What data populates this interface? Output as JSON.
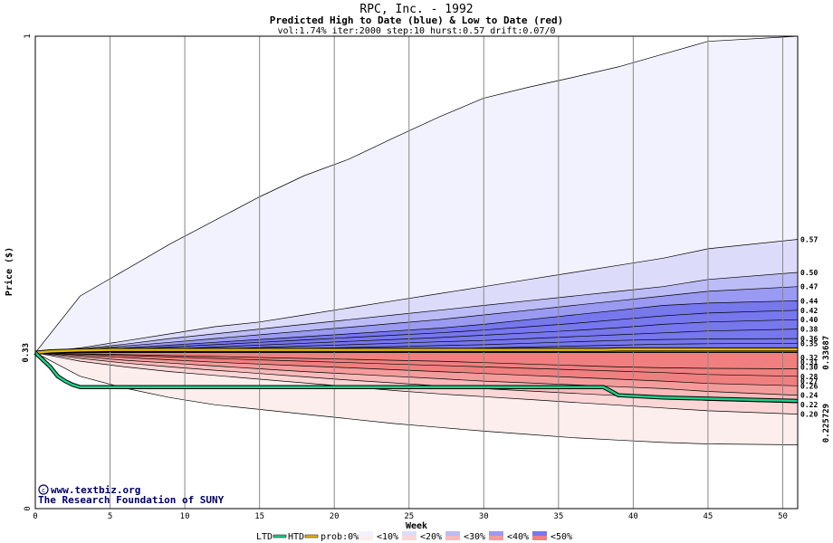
{
  "chart_data": {
    "type": "area",
    "title": "RPC, Inc. - 1992",
    "subtitle": "Predicted High to Date (blue) &  Low to Date (red)",
    "params": "vol:1.74% iter:2000 step:10 hurst:0.57 drift:0.07/0",
    "xlabel": "Week",
    "ylabel": "Price ($)",
    "xlim": [
      0,
      51
    ],
    "ylim": [
      0,
      1
    ],
    "x_ticks": [
      "0",
      "5",
      "10",
      "15",
      "20",
      "25",
      "30",
      "35",
      "40",
      "45",
      "50"
    ],
    "y_ticks": [
      "0",
      "1"
    ],
    "start_price_label": "0.33",
    "start_price": 0.33,
    "htd_value": "0.33687",
    "ltd_value": "0.225729",
    "right_labels": [
      "0.57",
      "0.50",
      "0.47",
      "0.44",
      "0.42",
      "0.40",
      "0.38",
      "0.36",
      "0.35",
      "0.32",
      "0.31",
      "0.30",
      "0.28",
      "0.27",
      "0.26",
      "0.24",
      "0.22",
      "0.20"
    ],
    "high_bands": [
      {
        "prob": "<10%",
        "color": "#f2f2fe",
        "upper": [
          0.33,
          0.45,
          0.505,
          0.56,
          0.61,
          0.66,
          0.705,
          0.74,
          0.785,
          0.829,
          0.869,
          0.892,
          0.913,
          0.935,
          0.962,
          0.989,
          1.0
        ]
      },
      {
        "prob": "<20%",
        "color": "#dcdcfa",
        "upper": [
          0.33,
          0.34,
          0.355,
          0.37,
          0.385,
          0.395,
          0.41,
          0.425,
          0.44,
          0.455,
          0.47,
          0.485,
          0.5,
          0.515,
          0.53,
          0.55,
          0.57
        ]
      },
      {
        "prob": "<30%",
        "color": "#bcbcf6",
        "upper": [
          0.33,
          0.338,
          0.348,
          0.36,
          0.37,
          0.38,
          0.39,
          0.4,
          0.41,
          0.42,
          0.43,
          0.44,
          0.45,
          0.46,
          0.47,
          0.485,
          0.5
        ]
      },
      {
        "prob": "<40%",
        "color": "#9a9af2",
        "upper": [
          0.33,
          0.336,
          0.344,
          0.352,
          0.36,
          0.368,
          0.376,
          0.384,
          0.392,
          0.4,
          0.41,
          0.42,
          0.43,
          0.44,
          0.45,
          0.46,
          0.47
        ]
      },
      {
        "prob": "<50%",
        "color": "#7777ee",
        "upper": [
          0.33,
          0.334,
          0.34,
          0.346,
          0.352,
          0.358,
          0.364,
          0.37,
          0.376,
          0.382,
          0.39,
          0.4,
          0.41,
          0.42,
          0.43,
          0.435,
          0.44
        ]
      }
    ],
    "high_inner_lines": [
      [
        0.33,
        0.333,
        0.337,
        0.342,
        0.347,
        0.352,
        0.357,
        0.362,
        0.367,
        0.372,
        0.378,
        0.385,
        0.392,
        0.4,
        0.408,
        0.414,
        0.42
      ],
      [
        0.33,
        0.332,
        0.335,
        0.338,
        0.342,
        0.346,
        0.35,
        0.354,
        0.358,
        0.362,
        0.367,
        0.372,
        0.377,
        0.383,
        0.39,
        0.395,
        0.4
      ],
      [
        0.33,
        0.331,
        0.333,
        0.335,
        0.338,
        0.341,
        0.344,
        0.347,
        0.35,
        0.353,
        0.356,
        0.36,
        0.364,
        0.368,
        0.372,
        0.376,
        0.38
      ],
      [
        0.33,
        0.331,
        0.332,
        0.333,
        0.335,
        0.337,
        0.339,
        0.341,
        0.343,
        0.345,
        0.347,
        0.35,
        0.353,
        0.356,
        0.358,
        0.359,
        0.36
      ],
      [
        0.33,
        0.33,
        0.331,
        0.332,
        0.333,
        0.334,
        0.335,
        0.336,
        0.337,
        0.338,
        0.34,
        0.342,
        0.344,
        0.346,
        0.348,
        0.349,
        0.35
      ]
    ],
    "low_bands": [
      {
        "prob": "<10%",
        "color": "#fdeeee",
        "lower": [
          0.33,
          0.28,
          0.255,
          0.235,
          0.22,
          0.21,
          0.2,
          0.19,
          0.18,
          0.172,
          0.164,
          0.157,
          0.15,
          0.145,
          0.14,
          0.137,
          0.135
        ]
      },
      {
        "prob": "<20%",
        "color": "#fbd6d6",
        "lower": [
          0.33,
          0.312,
          0.3,
          0.29,
          0.282,
          0.274,
          0.266,
          0.258,
          0.25,
          0.243,
          0.237,
          0.231,
          0.225,
          0.219,
          0.213,
          0.207,
          0.2
        ]
      },
      {
        "prob": "<30%",
        "color": "#f8baba",
        "lower": [
          0.33,
          0.318,
          0.308,
          0.3,
          0.293,
          0.286,
          0.279,
          0.272,
          0.266,
          0.26,
          0.254,
          0.249,
          0.244,
          0.239,
          0.234,
          0.229,
          0.224
        ]
      },
      {
        "prob": "<40%",
        "color": "#f49c9c",
        "lower": [
          0.33,
          0.322,
          0.314,
          0.308,
          0.302,
          0.296,
          0.29,
          0.285,
          0.28,
          0.275,
          0.27,
          0.266,
          0.262,
          0.258,
          0.254,
          0.248,
          0.24
        ]
      },
      {
        "prob": "<50%",
        "color": "#f08080",
        "lower": [
          0.33,
          0.325,
          0.32,
          0.315,
          0.31,
          0.306,
          0.302,
          0.298,
          0.294,
          0.29,
          0.286,
          0.282,
          0.278,
          0.274,
          0.27,
          0.265,
          0.26
        ]
      }
    ],
    "low_inner_lines": [
      [
        0.33,
        0.327,
        0.324,
        0.321,
        0.318,
        0.315,
        0.312,
        0.309,
        0.306,
        0.303,
        0.3,
        0.297,
        0.294,
        0.291,
        0.288,
        0.284,
        0.28
      ],
      [
        0.33,
        0.328,
        0.326,
        0.324,
        0.322,
        0.32,
        0.318,
        0.316,
        0.314,
        0.312,
        0.309,
        0.306,
        0.303,
        0.3,
        0.298,
        0.297,
        0.296
      ]
    ],
    "x_points": [
      0,
      3,
      6,
      9,
      12,
      15,
      18,
      21,
      24,
      27,
      30,
      33,
      36,
      39,
      42,
      45,
      51
    ],
    "htd_line": {
      "x": [
        0,
        1,
        3,
        5,
        10,
        20,
        30,
        38,
        39,
        51
      ],
      "y": [
        0.33,
        0.333,
        0.335,
        0.336,
        0.336,
        0.336,
        0.336,
        0.336,
        0.337,
        0.337
      ]
    },
    "ltd_line": {
      "x": [
        0,
        0.5,
        1,
        1.5,
        2,
        2.5,
        3,
        10,
        20,
        30,
        38,
        38.5,
        39,
        42,
        51
      ],
      "y": [
        0.33,
        0.315,
        0.3,
        0.28,
        0.27,
        0.262,
        0.257,
        0.257,
        0.257,
        0.257,
        0.257,
        0.249,
        0.24,
        0.235,
        0.228
      ]
    },
    "credit_url": "www.textbiz.org",
    "credit_org": "The Research Foundation of SUNY",
    "legend": {
      "ltd": "LTD",
      "htd": "HTD",
      "prob": "prob:0%",
      "entries": [
        "<10%",
        "<20%",
        "<30%",
        "<40%",
        "<50%"
      ],
      "ltd_color": "#1fd08a",
      "htd_color": "#e8b800",
      "blue_colors": [
        "#ffffff",
        "#f2f2fe",
        "#dcdcfa",
        "#bcbcf6",
        "#9a9af2",
        "#7777ee"
      ],
      "red_colors": [
        "#ffffff",
        "#fdeeee",
        "#fbd6d6",
        "#f8baba",
        "#f49c9c",
        "#f08080"
      ]
    }
  }
}
